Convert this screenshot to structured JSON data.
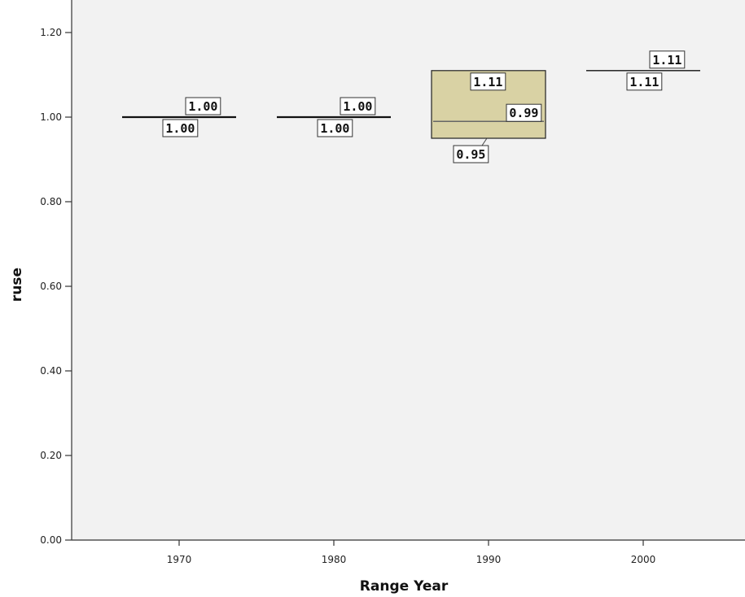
{
  "chart_data": {
    "type": "boxplot",
    "xlabel": "Range Year",
    "ylabel": "ruse",
    "ylim": [
      0,
      1.25
    ],
    "yticks": [
      {
        "value": 0.0,
        "label": "0.00"
      },
      {
        "value": 0.2,
        "label": "0.20"
      },
      {
        "value": 0.4,
        "label": "0.40"
      },
      {
        "value": 0.6,
        "label": "0.60"
      },
      {
        "value": 0.8,
        "label": "0.80"
      },
      {
        "value": 1.0,
        "label": "1.00"
      },
      {
        "value": 1.2,
        "label": "1.20"
      }
    ],
    "categories": [
      "1970",
      "1980",
      "1990",
      "2000"
    ],
    "box_fill": "#d9d2a4",
    "plot_background": "#f2f2f2",
    "grid": false,
    "legend": "none",
    "boxes": [
      {
        "category": "1970",
        "q1": 1.0,
        "median": 1.0,
        "q3": 1.0,
        "labels": [
          {
            "text": "1.00",
            "value": 1.0,
            "side": "upper"
          },
          {
            "text": "1.00",
            "value": 1.0,
            "side": "lower"
          }
        ]
      },
      {
        "category": "1980",
        "q1": 1.0,
        "median": 1.0,
        "q3": 1.0,
        "labels": [
          {
            "text": "1.00",
            "value": 1.0,
            "side": "upper"
          },
          {
            "text": "1.00",
            "value": 1.0,
            "side": "lower"
          }
        ]
      },
      {
        "category": "1990",
        "q1": 0.95,
        "median": 0.99,
        "q3": 1.11,
        "labels": [
          {
            "text": "1.11",
            "value": 1.11,
            "side": "upper"
          },
          {
            "text": "0.99",
            "value": 0.99,
            "side": "median"
          },
          {
            "text": "0.95",
            "value": 0.95,
            "side": "lower"
          }
        ]
      },
      {
        "category": "2000",
        "q1": 1.11,
        "median": 1.11,
        "q3": 1.11,
        "labels": [
          {
            "text": "1.11",
            "value": 1.11,
            "side": "upper"
          },
          {
            "text": "1.11",
            "value": 1.11,
            "side": "lower"
          }
        ]
      }
    ]
  }
}
